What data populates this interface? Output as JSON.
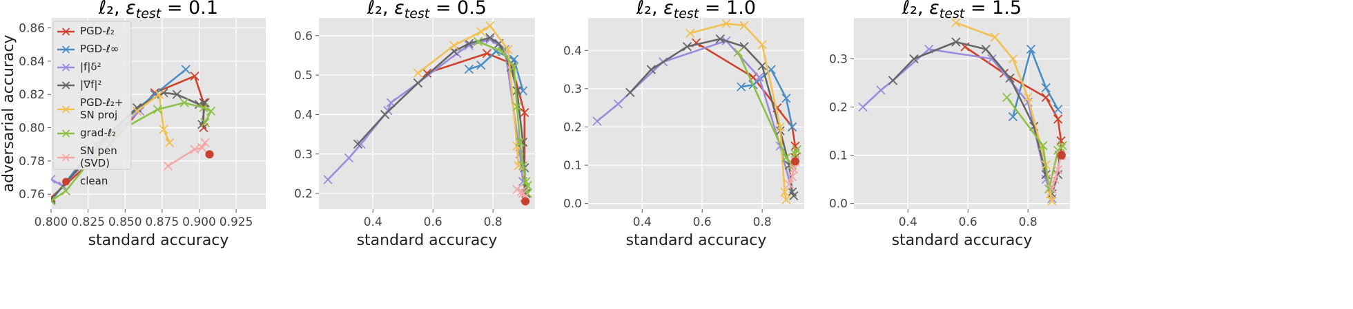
{
  "figure": {
    "ylabel": "adversarial accuracy",
    "series_styles": [
      {
        "name": "PGD-ℓ2",
        "color": "#d0402a"
      },
      {
        "name": "PGD-ℓ∞",
        "color": "#4a8dc4"
      },
      {
        "name": "|f|δ²",
        "color": "#9b8bdc"
      },
      {
        "name": "|∇f|²",
        "color": "#666666"
      },
      {
        "name": "PGD-ℓ2+ SN proj",
        "color": "#f2c04f"
      },
      {
        "name": "grad-ℓ2",
        "color": "#8cc044"
      },
      {
        "name": "SN pen (SVD)",
        "color": "#f5a7a7"
      },
      {
        "name": "clean",
        "color": "#c84030"
      }
    ],
    "legend": {
      "placement": "upper-left of first panel",
      "entries": [
        {
          "lines": [
            "PGD-ℓ₂"
          ],
          "color": "#d0402a",
          "marker": "x"
        },
        {
          "lines": [
            "PGD-ℓ∞"
          ],
          "color": "#4a8dc4",
          "marker": "x"
        },
        {
          "lines": [
            "|f|δ²"
          ],
          "color": "#9b8bdc",
          "marker": "x"
        },
        {
          "lines": [
            "|∇f|²"
          ],
          "color": "#666666",
          "marker": "x"
        },
        {
          "lines": [
            "PGD-ℓ₂+",
            "SN proj"
          ],
          "color": "#f2c04f",
          "marker": "x"
        },
        {
          "lines": [
            "grad-ℓ₂"
          ],
          "color": "#8cc044",
          "marker": "x"
        },
        {
          "lines": [
            "SN pen",
            "(SVD)"
          ],
          "color": "#f5a7a7",
          "marker": "x"
        },
        {
          "lines": [
            "clean"
          ],
          "color": "#c84030",
          "marker": "dot"
        }
      ]
    }
  },
  "chart_data": [
    {
      "type": "line",
      "title": "ℓ₂, εtest = 0.1",
      "xlabel": "standard accuracy",
      "ylabel": "adversarial accuracy",
      "xlim": [
        0.8,
        0.945
      ],
      "ylim": [
        0.751,
        0.866
      ],
      "xticks": [
        "0.800",
        "0.825",
        "0.850",
        "0.875",
        "0.900",
        "0.925"
      ],
      "xtick_values": [
        0.8,
        0.825,
        0.85,
        0.875,
        0.9,
        0.925
      ],
      "yticks": [
        "0.76",
        "0.78",
        "0.80",
        "0.82",
        "0.84",
        "0.86"
      ],
      "ytick_values": [
        0.76,
        0.78,
        0.8,
        0.82,
        0.84,
        0.86
      ],
      "grid": true,
      "series": [
        {
          "name": "PGD-ℓ2",
          "x": [
            0.8,
            0.84,
            0.87,
            0.897,
            0.903,
            0.903
          ],
          "y": [
            0.758,
            0.79,
            0.821,
            0.831,
            0.815,
            0.8
          ]
        },
        {
          "name": "PGD-ℓ∞",
          "x": [
            0.8,
            0.83,
            0.87,
            0.891
          ],
          "y": [
            0.756,
            0.79,
            0.82,
            0.835
          ]
        },
        {
          "name": "|f|δ²",
          "x": [
            0.8,
            0.808,
            0.84,
            0.86
          ],
          "y": [
            0.769,
            0.765,
            0.795,
            0.81
          ]
        },
        {
          "name": "|∇f|²",
          "x": [
            0.8,
            0.84,
            0.858,
            0.876,
            0.885,
            0.9,
            0.904,
            0.902
          ],
          "y": [
            0.757,
            0.797,
            0.812,
            0.821,
            0.82,
            0.814,
            0.815,
            0.802
          ]
        },
        {
          "name": "PGD-ℓ2+ SN proj",
          "x": [
            0.858,
            0.873,
            0.876,
            0.88
          ],
          "y": [
            0.81,
            0.82,
            0.799,
            0.791
          ]
        },
        {
          "name": "grad-ℓ2",
          "x": [
            0.8,
            0.81,
            0.84,
            0.872,
            0.89,
            0.903,
            0.908,
            0.904
          ],
          "y": [
            0.756,
            0.762,
            0.795,
            0.811,
            0.815,
            0.812,
            0.81,
            0.803
          ]
        },
        {
          "name": "SN pen (SVD)",
          "x": [
            0.879,
            0.897,
            0.902,
            0.904
          ],
          "y": [
            0.777,
            0.787,
            0.788,
            0.791
          ]
        },
        {
          "name": "clean",
          "x": [
            0.907
          ],
          "y": [
            0.784
          ],
          "marker": "dot"
        }
      ]
    },
    {
      "type": "line",
      "title": "ℓ₂, εtest = 0.5",
      "xlabel": "standard accuracy",
      "ylabel": "",
      "xlim": [
        0.22,
        0.94
      ],
      "ylim": [
        0.16,
        0.645
      ],
      "xticks": [
        "0.4",
        "0.6",
        "0.8"
      ],
      "xtick_values": [
        0.4,
        0.6,
        0.8
      ],
      "yticks": [
        "0.2",
        "0.3",
        "0.4",
        "0.5",
        "0.6"
      ],
      "ytick_values": [
        0.2,
        0.3,
        0.4,
        0.5,
        0.6
      ],
      "grid": true,
      "series": [
        {
          "name": "PGD-ℓ2",
          "x": [
            0.58,
            0.78,
            0.86,
            0.905,
            0.905
          ],
          "y": [
            0.505,
            0.555,
            0.53,
            0.405,
            0.19
          ]
        },
        {
          "name": "PGD-ℓ∞",
          "x": [
            0.72,
            0.76,
            0.81,
            0.87,
            0.9
          ],
          "y": [
            0.515,
            0.525,
            0.56,
            0.54,
            0.46
          ]
        },
        {
          "name": "|f|δ²",
          "x": [
            0.25,
            0.32,
            0.36,
            0.45,
            0.46,
            0.55,
            0.68,
            0.72,
            0.79,
            0.84,
            0.89,
            0.9
          ],
          "y": [
            0.235,
            0.29,
            0.325,
            0.41,
            0.43,
            0.48,
            0.555,
            0.575,
            0.59,
            0.565,
            0.3,
            0.23
          ]
        },
        {
          "name": "|∇f|²",
          "x": [
            0.35,
            0.44,
            0.55,
            0.67,
            0.72,
            0.79,
            0.82,
            0.86,
            0.88,
            0.9,
            0.905,
            0.91
          ],
          "y": [
            0.325,
            0.4,
            0.48,
            0.56,
            0.58,
            0.595,
            0.58,
            0.52,
            0.46,
            0.33,
            0.265,
            0.2
          ]
        },
        {
          "name": "PGD-ℓ2+ SN proj",
          "x": [
            0.55,
            0.67,
            0.76,
            0.79,
            0.85,
            0.88,
            0.885
          ],
          "y": [
            0.505,
            0.575,
            0.61,
            0.625,
            0.565,
            0.32,
            0.27
          ]
        },
        {
          "name": "grad-ℓ2",
          "x": [
            0.75,
            0.83,
            0.87,
            0.88,
            0.89,
            0.9,
            0.91,
            0.915,
            0.915
          ],
          "y": [
            0.585,
            0.56,
            0.52,
            0.42,
            0.33,
            0.27,
            0.23,
            0.22,
            0.2
          ]
        },
        {
          "name": "SN pen (SVD)",
          "x": [
            0.88,
            0.895,
            0.9,
            0.905
          ],
          "y": [
            0.21,
            0.205,
            0.2,
            0.19
          ]
        },
        {
          "name": "clean",
          "x": [
            0.908
          ],
          "y": [
            0.18
          ],
          "marker": "dot"
        }
      ]
    },
    {
      "type": "line",
      "title": "ℓ₂, εtest = 1.0",
      "xlabel": "standard accuracy",
      "ylabel": "",
      "xlim": [
        0.22,
        0.94
      ],
      "ylim": [
        -0.015,
        0.485
      ],
      "xticks": [
        "0.4",
        "0.6",
        "0.8"
      ],
      "xtick_values": [
        0.4,
        0.6,
        0.8
      ],
      "yticks": [
        "0.0",
        "0.1",
        "0.2",
        "0.3",
        "0.4"
      ],
      "ytick_values": [
        0.0,
        0.1,
        0.2,
        0.3,
        0.4
      ],
      "grid": true,
      "series": [
        {
          "name": "PGD-ℓ2",
          "x": [
            0.58,
            0.77,
            0.85,
            0.9,
            0.91,
            0.91
          ],
          "y": [
            0.42,
            0.33,
            0.25,
            0.2,
            0.15,
            0.12
          ]
        },
        {
          "name": "PGD-ℓ∞",
          "x": [
            0.73,
            0.77,
            0.83,
            0.88,
            0.9
          ],
          "y": [
            0.305,
            0.31,
            0.35,
            0.275,
            0.2
          ]
        },
        {
          "name": "|f|δ²",
          "x": [
            0.25,
            0.32,
            0.36,
            0.47,
            0.68,
            0.79,
            0.86,
            0.9
          ],
          "y": [
            0.215,
            0.26,
            0.29,
            0.37,
            0.425,
            0.33,
            0.15,
            0.03
          ]
        },
        {
          "name": "|∇f|²",
          "x": [
            0.36,
            0.43,
            0.55,
            0.66,
            0.74,
            0.8,
            0.86,
            0.89,
            0.9,
            0.905
          ],
          "y": [
            0.29,
            0.35,
            0.41,
            0.43,
            0.41,
            0.36,
            0.19,
            0.1,
            0.03,
            0.02
          ]
        },
        {
          "name": "PGD-ℓ2+ SN proj",
          "x": [
            0.56,
            0.68,
            0.74,
            0.8,
            0.86,
            0.875,
            0.88
          ],
          "y": [
            0.445,
            0.47,
            0.465,
            0.415,
            0.2,
            0.03,
            0.01
          ]
        },
        {
          "name": "grad-ℓ2",
          "x": [
            0.72,
            0.88,
            0.9,
            0.91,
            0.915
          ],
          "y": [
            0.395,
            0.12,
            0.1,
            0.13,
            0.14
          ]
        },
        {
          "name": "SN pen (SVD)",
          "x": [
            0.89,
            0.9,
            0.905,
            0.91
          ],
          "y": [
            0.05,
            0.07,
            0.09,
            0.11
          ]
        },
        {
          "name": "clean",
          "x": [
            0.91
          ],
          "y": [
            0.11
          ],
          "marker": "dot"
        }
      ]
    },
    {
      "type": "line",
      "title": "ℓ₂, εtest = 1.5",
      "xlabel": "standard accuracy",
      "ylabel": "",
      "xlim": [
        0.22,
        0.94
      ],
      "ylim": [
        -0.012,
        0.385
      ],
      "xticks": [
        "0.4",
        "0.6",
        "0.8"
      ],
      "xtick_values": [
        0.4,
        0.6,
        0.8
      ],
      "yticks": [
        "0.0",
        "0.1",
        "0.2",
        "0.3"
      ],
      "ytick_values": [
        0.0,
        0.1,
        0.2,
        0.3
      ],
      "grid": true,
      "series": [
        {
          "name": "PGD-ℓ2",
          "x": [
            0.59,
            0.72,
            0.86,
            0.9,
            0.91,
            0.91
          ],
          "y": [
            0.325,
            0.27,
            0.22,
            0.175,
            0.13,
            0.1
          ]
        },
        {
          "name": "PGD-ℓ∞",
          "x": [
            0.75,
            0.81,
            0.86,
            0.9
          ],
          "y": [
            0.18,
            0.32,
            0.24,
            0.195
          ]
        },
        {
          "name": "|f|δ²",
          "x": [
            0.25,
            0.31,
            0.35,
            0.47,
            0.68,
            0.8,
            0.86,
            0.88
          ],
          "y": [
            0.2,
            0.235,
            0.255,
            0.32,
            0.3,
            0.21,
            0.05,
            0.01
          ]
        },
        {
          "name": "|∇f|²",
          "x": [
            0.35,
            0.42,
            0.56,
            0.66,
            0.74,
            0.82,
            0.86,
            0.88,
            0.9,
            0.905
          ],
          "y": [
            0.255,
            0.3,
            0.335,
            0.32,
            0.26,
            0.16,
            0.06,
            0.02,
            0.06,
            0.1
          ]
        },
        {
          "name": "PGD-ℓ2+ SN proj",
          "x": [
            0.56,
            0.69,
            0.75,
            0.8,
            0.86,
            0.875,
            0.88
          ],
          "y": [
            0.375,
            0.345,
            0.3,
            0.22,
            0.08,
            0.02,
            0.005
          ]
        },
        {
          "name": "grad-ℓ2",
          "x": [
            0.73,
            0.85,
            0.87,
            0.9,
            0.91,
            0.915
          ],
          "y": [
            0.22,
            0.12,
            0.03,
            0.11,
            0.115,
            0.12
          ]
        },
        {
          "name": "SN pen (SVD)",
          "x": [
            0.88,
            0.89,
            0.9,
            0.91
          ],
          "y": [
            0.03,
            0.05,
            0.07,
            0.1
          ]
        },
        {
          "name": "clean",
          "x": [
            0.912
          ],
          "y": [
            0.1
          ],
          "marker": "dot"
        }
      ]
    }
  ]
}
